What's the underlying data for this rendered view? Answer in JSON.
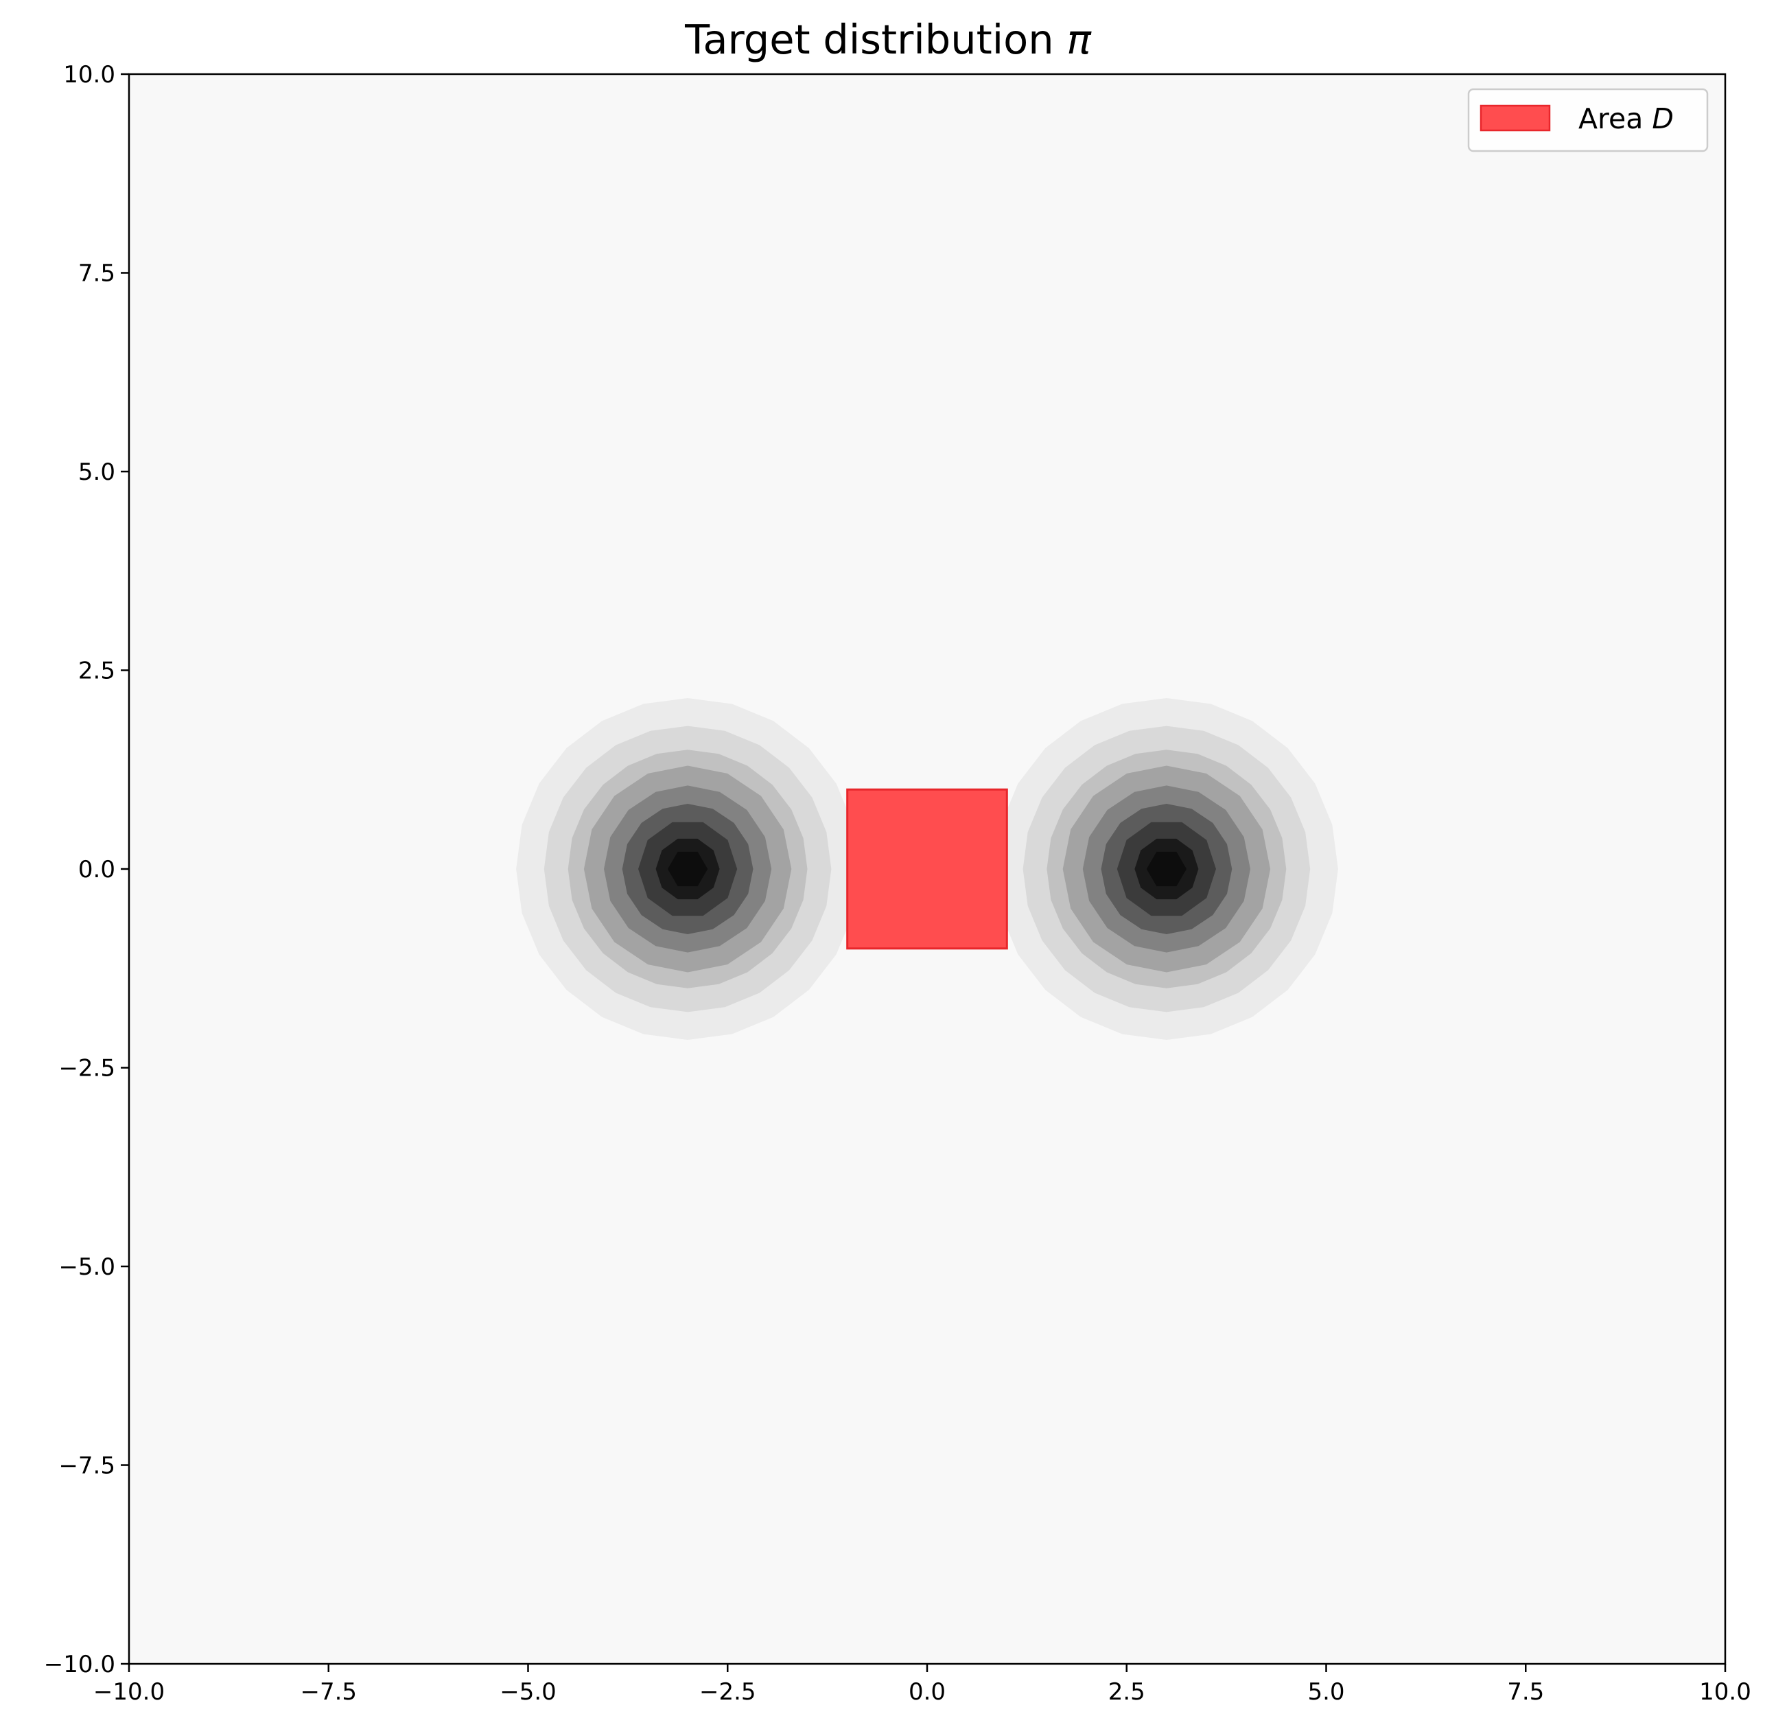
{
  "chart_data": {
    "type": "contour",
    "title": "Target distribution",
    "title_symbol": "π",
    "xlabel": "",
    "ylabel": "",
    "xlim": [
      -10,
      10
    ],
    "ylim": [
      -10,
      10
    ],
    "x_ticks": [
      -10,
      -7.5,
      -5,
      -2.5,
      0,
      2.5,
      5,
      7.5,
      10
    ],
    "y_ticks": [
      -10,
      -7.5,
      -5,
      -2.5,
      0,
      2.5,
      5,
      7.5,
      10
    ],
    "x_tick_labels": [
      "−10.0",
      "−7.5",
      "−5.0",
      "−2.5",
      "0.0",
      "2.5",
      "5.0",
      "7.5",
      "10.0"
    ],
    "y_tick_labels": [
      "−10.0",
      "−7.5",
      "−5.0",
      "−2.5",
      "0.0",
      "2.5",
      "5.0",
      "7.5",
      "10.0"
    ],
    "grid": false,
    "background_color": "#f8f8f8",
    "contour_levels": [
      {
        "radius": 2.15,
        "color": "#ebebeb"
      },
      {
        "radius": 1.8,
        "color": "#d9d9d9"
      },
      {
        "radius": 1.5,
        "color": "#c1c1c1"
      },
      {
        "radius": 1.3,
        "color": "#a3a3a3"
      },
      {
        "radius": 1.05,
        "color": "#828282"
      },
      {
        "radius": 0.82,
        "color": "#5c5c5c"
      },
      {
        "radius": 0.62,
        "color": "#3b3b3b"
      },
      {
        "radius": 0.4,
        "color": "#1a1a1a"
      },
      {
        "radius": 0.25,
        "color": "#0d0d0d"
      }
    ],
    "modes": [
      {
        "center": [
          -3,
          0
        ]
      },
      {
        "center": [
          3,
          0
        ]
      }
    ],
    "area": {
      "label": "Area",
      "label_symbol": "D",
      "x_range": [
        -1,
        1
      ],
      "y_range": [
        -1,
        1
      ],
      "fill_color": "#ff4d4f",
      "edge_color": "#e8262b"
    },
    "legend_position": "top-right"
  }
}
